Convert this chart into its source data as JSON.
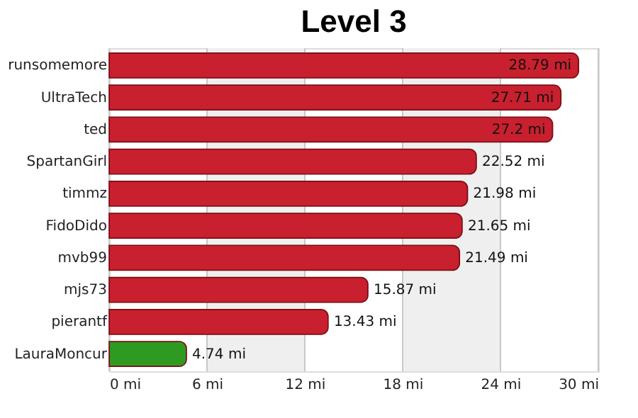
{
  "chart_data": {
    "type": "bar",
    "orientation": "horizontal",
    "title": "Level 3",
    "categories": [
      "runsomemore",
      "UltraTech",
      "ted",
      "SpartanGirl",
      "timmz",
      "FidoDido",
      "mvb99",
      "mjs73",
      "pierantf",
      "LauraMoncur"
    ],
    "values": [
      28.79,
      27.71,
      27.2,
      22.52,
      21.98,
      21.65,
      21.49,
      15.87,
      13.43,
      4.74
    ],
    "colors": [
      "#c8202e",
      "#c8202e",
      "#c8202e",
      "#c8202e",
      "#c8202e",
      "#c8202e",
      "#c8202e",
      "#c8202e",
      "#c8202e",
      "#2e9a22"
    ],
    "value_labels": [
      "28.79 mi",
      "27.71 mi",
      "27.2 mi",
      "22.52 mi",
      "21.98 mi",
      "21.65 mi",
      "21.49 mi",
      "15.87 mi",
      "13.43 mi",
      "4.74 mi"
    ],
    "xlim": [
      0,
      30
    ],
    "xticks": [
      {
        "value": 0,
        "label": "0 mi"
      },
      {
        "value": 6,
        "label": "6 mi"
      },
      {
        "value": 12,
        "label": "12 mi"
      },
      {
        "value": 18,
        "label": "18 mi"
      },
      {
        "value": 24,
        "label": "24 mi"
      },
      {
        "value": 30,
        "label": "30 mi"
      }
    ],
    "bands": [
      {
        "axis": "x",
        "from": 6,
        "to": 12,
        "color": "#efefef"
      },
      {
        "axis": "x",
        "from": 18,
        "to": 24,
        "color": "#efefef"
      }
    ],
    "grid": "x"
  }
}
